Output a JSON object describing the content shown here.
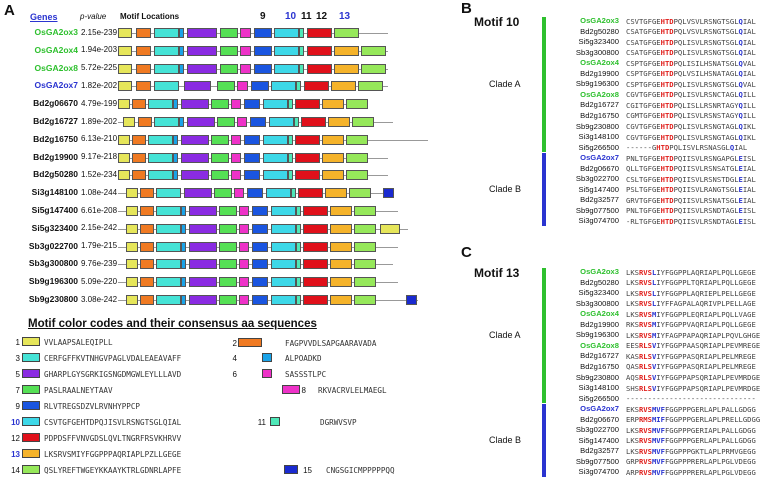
{
  "panels": {
    "a": "A",
    "b": "B",
    "c": "C"
  },
  "header": {
    "genes": "Genes",
    "pvalue": "p-value",
    "locations": "Motif Locations",
    "numbers": [
      {
        "t": "9",
        "c": "#111"
      },
      {
        "t": "10",
        "c": "#2a34d0"
      },
      {
        "t": "11",
        "c": "#111"
      },
      {
        "t": "12",
        "c": "#111"
      },
      {
        "t": "13",
        "c": "#2a34d0"
      }
    ]
  },
  "colors": {
    "1": "#e6e65a",
    "2": "#f07a22",
    "3": "#45e3d6",
    "4": "#1aa3e8",
    "5": "#8a2be2",
    "6": "#ee32c8",
    "7": "#55e055",
    "8": "#ee32c8",
    "9": "#1a55e0",
    "10": "#3dd8e8",
    "11": "#4ee8b8",
    "12": "#e0101a",
    "13": "#f5b32a",
    "14": "#96e85a",
    "15": "#1a2ad0",
    "green": "#2ec02e",
    "blue": "#2a34d0"
  },
  "genes": [
    {
      "name": "OsGA2ox3",
      "p": "2.15e-239",
      "color": "#2ec02e"
    },
    {
      "name": "OsGA2ox4",
      "p": "1.94e-203",
      "color": "#2ec02e"
    },
    {
      "name": "OsGA2ox8",
      "p": "5.72e-225",
      "color": "#2ec02e"
    },
    {
      "name": "OsGA2ox7",
      "p": "1.82e-202",
      "color": "#2a34d0"
    },
    {
      "name": "Bd2g06670",
      "p": "4.79e-199",
      "color": "#111"
    },
    {
      "name": "Bd2g16727",
      "p": "1.89e-202",
      "color": "#111"
    },
    {
      "name": "Bd2g16750",
      "p": "6.13e-210",
      "color": "#111"
    },
    {
      "name": "Bd2g19900",
      "p": "9.17e-218",
      "color": "#111"
    },
    {
      "name": "Bd2g50280",
      "p": "1.52e-234",
      "color": "#111"
    },
    {
      "name": "Si3g148100",
      "p": "1.08e-244",
      "color": "#111"
    },
    {
      "name": "Si5g147400",
      "p": "6.61e-208",
      "color": "#111"
    },
    {
      "name": "Si5g323400",
      "p": "2.15e-242",
      "color": "#111"
    },
    {
      "name": "Sb3g022700",
      "p": "1.79e-215",
      "color": "#111"
    },
    {
      "name": "Sb3g300800",
      "p": "9.76e-239",
      "color": "#111"
    },
    {
      "name": "Sb9g196300",
      "p": "5.09e-220",
      "color": "#111"
    },
    {
      "name": "Sb9g230800",
      "p": "3.08e-242",
      "color": "#111"
    }
  ],
  "legend": {
    "title": "Motif color codes and their consensus aa sequences",
    "items": [
      {
        "n": "1",
        "seq": "VVLAAPSALEQIPLL",
        "nc": "#111"
      },
      {
        "n": "2",
        "seq": "FAGPVVDLSAPGAARAVADA",
        "nc": "#111"
      },
      {
        "n": "3",
        "seq": "CERFGFFKVTNHGVPAGLVDALEAEAVAFF",
        "nc": "#111"
      },
      {
        "n": "4",
        "seq": "ALPOADKD",
        "nc": "#111"
      },
      {
        "n": "5",
        "seq": "GHARPLGYSGRKIGSNGDMGWLEYLLLAVD",
        "nc": "#111"
      },
      {
        "n": "6",
        "seq": "SASSSTLPC",
        "nc": "#111"
      },
      {
        "n": "7",
        "seq": "PASLRAALNEYTAAV",
        "nc": "#111"
      },
      {
        "n": "8",
        "seq": "RKVACRVLELMAEGL",
        "nc": "#111"
      },
      {
        "n": "9",
        "seq": "RLVTREGSDZVLRVNHYPPCP",
        "nc": "#111"
      },
      {
        "n": "10",
        "seq": "CSVTGFGEHTDPQJISVLRSNGTSGLQIAL",
        "nc": "#2a34d0"
      },
      {
        "n": "11",
        "seq": "DGRWVSVP",
        "nc": "#111"
      },
      {
        "n": "12",
        "seq": "PDPDSFFVNVGDSLQVLTNGRFRSVKHRVV",
        "nc": "#111"
      },
      {
        "n": "13",
        "seq": "LKSRVSMIYFGGPPPAQRIAPLPZLLGEGE",
        "nc": "#2a34d0"
      },
      {
        "n": "14",
        "seq": "QSLYREFTWGEYKKAAYKTRLGDNRLAPFE",
        "nc": "#111"
      },
      {
        "n": "15",
        "seq": "CNGSGICMPPPPPQQ",
        "nc": "#111"
      }
    ]
  },
  "motif10": {
    "title": "Motif 10",
    "cladeA": "Clade A",
    "cladeB": "Clade B",
    "rows": [
      {
        "name": "OsGA2ox3",
        "c": "#2ec02e",
        "s": [
          [
            "CSVTGFGE",
            ""
          ],
          [
            "HTD",
            "r"
          ],
          [
            "PQLVSVLRSNGTSGL",
            ""
          ],
          [
            "Q",
            "b"
          ],
          [
            "IAL",
            ""
          ]
        ]
      },
      {
        "name": "Bd2g50280",
        "c": "#111",
        "s": [
          [
            "CSATGFGE",
            ""
          ],
          [
            "HTD",
            "r"
          ],
          [
            "PQLVSVLRSNGTSGL",
            ""
          ],
          [
            "Q",
            "b"
          ],
          [
            "IAL",
            ""
          ]
        ]
      },
      {
        "name": "Si5g323400",
        "c": "#111",
        "s": [
          [
            "CSATGFGE",
            ""
          ],
          [
            "HTD",
            "r"
          ],
          [
            "PQLISVLRSNGTSGL",
            ""
          ],
          [
            "Q",
            "b"
          ],
          [
            "IAL",
            ""
          ]
        ]
      },
      {
        "name": "Sb3g300800",
        "c": "#111",
        "s": [
          [
            "CSATGFGE",
            ""
          ],
          [
            "HTD",
            "r"
          ],
          [
            "PQLISVLRSNGTSGL",
            ""
          ],
          [
            "Q",
            "b"
          ],
          [
            "IAL",
            ""
          ]
        ]
      },
      {
        "name": "OsGA2ox4",
        "c": "#2ec02e",
        "s": [
          [
            "CSPTGFGE",
            ""
          ],
          [
            "HTD",
            "r"
          ],
          [
            "PQLISILHSNATSGL",
            ""
          ],
          [
            "Q",
            "b"
          ],
          [
            "VAL",
            ""
          ]
        ]
      },
      {
        "name": "Bd2g19900",
        "c": "#111",
        "s": [
          [
            "CSPTGFGE",
            ""
          ],
          [
            "HTD",
            "r"
          ],
          [
            "PQLVSILHSNATAGL",
            ""
          ],
          [
            "Q",
            "b"
          ],
          [
            "IAL",
            ""
          ]
        ]
      },
      {
        "name": "Sb9g196300",
        "c": "#111",
        "s": [
          [
            "CSPTGFGE",
            ""
          ],
          [
            "HTD",
            "r"
          ],
          [
            "PQLISVLRSNGTSGL",
            ""
          ],
          [
            "Q",
            "b"
          ],
          [
            "VAL",
            ""
          ]
        ]
      },
      {
        "name": "OsGA2ox8",
        "c": "#2ec02e",
        "s": [
          [
            "CGVTGFGE",
            ""
          ],
          [
            "HTD",
            "r"
          ],
          [
            "PQLISVLRSNCTAGL",
            ""
          ],
          [
            "Q",
            "b"
          ],
          [
            "ILL",
            ""
          ]
        ]
      },
      {
        "name": "Bd2g16727",
        "c": "#111",
        "s": [
          [
            "CGITGFGE",
            ""
          ],
          [
            "HTD",
            "r"
          ],
          [
            "PQLISLLRSNRTAGY",
            ""
          ],
          [
            "Q",
            "b"
          ],
          [
            "ILL",
            ""
          ]
        ]
      },
      {
        "name": "Bd2g16750",
        "c": "#111",
        "s": [
          [
            "CGMTGFGE",
            ""
          ],
          [
            "HTD",
            "r"
          ],
          [
            "PQLISVLRSNSTAGY",
            ""
          ],
          [
            "Q",
            "b"
          ],
          [
            "ILL",
            ""
          ]
        ]
      },
      {
        "name": "Sb9g230800",
        "c": "#111",
        "s": [
          [
            "CGVTGFGE",
            ""
          ],
          [
            "HTD",
            "r"
          ],
          [
            "PQLISVLRSNGTAGL",
            ""
          ],
          [
            "Q",
            "b"
          ],
          [
            "IKL",
            ""
          ]
        ]
      },
      {
        "name": "Si3g148100",
        "c": "#111",
        "s": [
          [
            "CGVTGFGE",
            ""
          ],
          [
            "HTD",
            "r"
          ],
          [
            "PQLISVLRSNGTAGL",
            ""
          ],
          [
            "Q",
            "b"
          ],
          [
            "IKL",
            ""
          ]
        ]
      },
      {
        "name": "Si5g266500",
        "c": "#111",
        "s": [
          [
            "------G",
            ""
          ],
          [
            "HTD",
            "r"
          ],
          [
            "PQLISVLRSNASGL",
            ""
          ],
          [
            "Q",
            "b"
          ],
          [
            "IAL",
            ""
          ]
        ]
      },
      {
        "name": "OsGA2ox7",
        "c": "#2a34d0",
        "s": [
          [
            "PNLTGFGE",
            ""
          ],
          [
            "HTD",
            "r"
          ],
          [
            "PQIISVLRSNGAPGL",
            ""
          ],
          [
            "E",
            "b"
          ],
          [
            "ISL",
            ""
          ]
        ]
      },
      {
        "name": "Bd2g06670",
        "c": "#111",
        "s": [
          [
            "QLLTGFGE",
            ""
          ],
          [
            "HTD",
            "r"
          ],
          [
            "PQIISVLRSNSATGL",
            ""
          ],
          [
            "E",
            "b"
          ],
          [
            "IAL",
            ""
          ]
        ]
      },
      {
        "name": "Sb3g022700",
        "c": "#111",
        "s": [
          [
            "CSLTGFGE",
            ""
          ],
          [
            "HTD",
            "r"
          ],
          [
            "PQIISVLRSNSTDGL",
            ""
          ],
          [
            "E",
            "b"
          ],
          [
            "IAL",
            ""
          ]
        ]
      },
      {
        "name": "Si5g147400",
        "c": "#111",
        "s": [
          [
            "PSLTGFGE",
            ""
          ],
          [
            "HTD",
            "r"
          ],
          [
            "PQIISVLRANGTSGL",
            ""
          ],
          [
            "E",
            "b"
          ],
          [
            "IAL",
            ""
          ]
        ]
      },
      {
        "name": "Bd2g32577",
        "c": "#111",
        "s": [
          [
            "GRVTGFGE",
            ""
          ],
          [
            "HTD",
            "r"
          ],
          [
            "PQIISVLRSNATSGL",
            ""
          ],
          [
            "E",
            "b"
          ],
          [
            "IAL",
            ""
          ]
        ]
      },
      {
        "name": "Sb9g077500",
        "c": "#111",
        "s": [
          [
            "PNLTGFGE",
            ""
          ],
          [
            "HTD",
            "r"
          ],
          [
            "PQIISVLRSNDTAGL",
            ""
          ],
          [
            "E",
            "b"
          ],
          [
            "ISL",
            ""
          ]
        ]
      },
      {
        "name": "Si3g074700",
        "c": "#111",
        "s": [
          [
            "-RLTGFGE",
            ""
          ],
          [
            "HTD",
            "r"
          ],
          [
            "PQIISVLRSNDTAGL",
            ""
          ],
          [
            "E",
            "b"
          ],
          [
            "ISL",
            ""
          ]
        ]
      }
    ]
  },
  "motif13": {
    "title": "Motif 13",
    "cladeA": "Clade A",
    "cladeB": "Clade B",
    "rows": [
      {
        "name": "OsGA2ox3",
        "c": "#2ec02e",
        "s": [
          [
            "LKS",
            ""
          ],
          [
            "RVS",
            "r"
          ],
          [
            "L",
            "b"
          ],
          [
            "IYF",
            ""
          ],
          [
            "GGPPLAQRIAPLPQLLGEGE",
            ""
          ]
        ]
      },
      {
        "name": "Bd2g50280",
        "c": "#111",
        "s": [
          [
            "LKS",
            ""
          ],
          [
            "RVS",
            "r"
          ],
          [
            "L",
            "b"
          ],
          [
            "IYF",
            ""
          ],
          [
            "GGPPLTQRIAPLPQLLGEGE",
            ""
          ]
        ]
      },
      {
        "name": "Si5g323400",
        "c": "#111",
        "s": [
          [
            "LKS",
            ""
          ],
          [
            "RVS",
            "r"
          ],
          [
            "L",
            "b"
          ],
          [
            "IYF",
            ""
          ],
          [
            "GGPPLAQRIEPLPELLGEGE",
            ""
          ]
        ]
      },
      {
        "name": "Sb3g300800",
        "c": "#111",
        "s": [
          [
            "LKS",
            ""
          ],
          [
            "RVS",
            "r"
          ],
          [
            "L",
            "b"
          ],
          [
            "IYF",
            ""
          ],
          [
            "FAGPALAQRIVPLPELLAGE",
            ""
          ]
        ]
      },
      {
        "name": "OsGA2ox4",
        "c": "#2ec02e",
        "s": [
          [
            "LKS",
            ""
          ],
          [
            "RVS",
            "r"
          ],
          [
            "M",
            "b"
          ],
          [
            "IYF",
            ""
          ],
          [
            "GGPPLEQRIAPLPQLLVAGE",
            ""
          ]
        ]
      },
      {
        "name": "Bd2g19900",
        "c": "#111",
        "s": [
          [
            "RKS",
            ""
          ],
          [
            "RVS",
            "r"
          ],
          [
            "M",
            "b"
          ],
          [
            "IYF",
            ""
          ],
          [
            "GGPPVAQRIAPLPQLLGEGE",
            ""
          ]
        ]
      },
      {
        "name": "Sb9g196300",
        "c": "#111",
        "s": [
          [
            "LKS",
            ""
          ],
          [
            "RVS",
            "r"
          ],
          [
            "M",
            "b"
          ],
          [
            "IYF",
            ""
          ],
          [
            "AGPPAPAQRIAPLPQVLGHGE",
            ""
          ]
        ]
      },
      {
        "name": "OsGA2ox8",
        "c": "#2ec02e",
        "s": [
          [
            "EES",
            ""
          ],
          [
            "RLS",
            "r"
          ],
          [
            "V",
            "b"
          ],
          [
            "IYF",
            ""
          ],
          [
            "GGPPAASQRIAPLPEVMREGE",
            ""
          ]
        ]
      },
      {
        "name": "Bd2g16727",
        "c": "#111",
        "s": [
          [
            "KAS",
            ""
          ],
          [
            "RLS",
            "r"
          ],
          [
            "V",
            "b"
          ],
          [
            "IYF",
            ""
          ],
          [
            "GGPPASQRIAPLPELMREGE",
            ""
          ]
        ]
      },
      {
        "name": "Bd2g16750",
        "c": "#111",
        "s": [
          [
            "QAS",
            ""
          ],
          [
            "RLS",
            "r"
          ],
          [
            "V",
            "b"
          ],
          [
            "IYF",
            ""
          ],
          [
            "GGPPASQRIAPLPELMREGE",
            ""
          ]
        ]
      },
      {
        "name": "Sb9g230800",
        "c": "#111",
        "s": [
          [
            "AQS",
            ""
          ],
          [
            "RLS",
            "r"
          ],
          [
            "V",
            "b"
          ],
          [
            "IYF",
            ""
          ],
          [
            "GGPPAPSQRIAPLPEVMRDGE",
            ""
          ]
        ]
      },
      {
        "name": "Si3g148100",
        "c": "#111",
        "s": [
          [
            "SHS",
            ""
          ],
          [
            "RLS",
            "r"
          ],
          [
            "V",
            "b"
          ],
          [
            "IYF",
            ""
          ],
          [
            "GGPPAPSQRIAPLPEVMRDGE",
            ""
          ]
        ]
      },
      {
        "name": "Si5g266500",
        "c": "#111",
        "s": [
          [
            "------------------------------",
            ""
          ]
        ]
      },
      {
        "name": "OsGA2ox7",
        "c": "#2a34d0",
        "s": [
          [
            "EKS",
            ""
          ],
          [
            "RVS",
            "r"
          ],
          [
            "M",
            "b"
          ],
          [
            "VF",
            "b"
          ],
          [
            "FGGPPPGERLAPLPALLGDGG",
            ""
          ]
        ]
      },
      {
        "name": "Bd2g06670",
        "c": "#111",
        "s": [
          [
            "ERP",
            ""
          ],
          [
            "RMS",
            "r"
          ],
          [
            "M",
            "b"
          ],
          [
            "IF",
            "b"
          ],
          [
            "FGGPPPGERLAPLPRELLGDGG",
            ""
          ]
        ]
      },
      {
        "name": "Sb3g022700",
        "c": "#111",
        "s": [
          [
            "LKS",
            ""
          ],
          [
            "RVS",
            "r"
          ],
          [
            "M",
            "b"
          ],
          [
            "VF",
            "b"
          ],
          [
            "FGGPPPGERIAPLPALLGDGG",
            ""
          ]
        ]
      },
      {
        "name": "Si5g147400",
        "c": "#111",
        "s": [
          [
            "LKS",
            ""
          ],
          [
            "RVS",
            "r"
          ],
          [
            "M",
            "b"
          ],
          [
            "VF",
            "b"
          ],
          [
            "FGGPPPGERLAPLPALLGDGG",
            ""
          ]
        ]
      },
      {
        "name": "Bd2g32577",
        "c": "#111",
        "s": [
          [
            "LKS",
            ""
          ],
          [
            "RVS",
            "r"
          ],
          [
            "M",
            "b"
          ],
          [
            "VF",
            "b"
          ],
          [
            "FGGPPPGKTLAPLPRMVGEGG",
            ""
          ]
        ]
      },
      {
        "name": "Sb9g077500",
        "c": "#111",
        "s": [
          [
            "GRP",
            ""
          ],
          [
            "RVS",
            "r"
          ],
          [
            "M",
            "b"
          ],
          [
            "VF",
            "b"
          ],
          [
            "FGGPPPRERLAPLPGLVDEGG",
            ""
          ]
        ]
      },
      {
        "name": "Si3g074700",
        "c": "#111",
        "s": [
          [
            "ARP",
            ""
          ],
          [
            "RVS",
            "r"
          ],
          [
            "M",
            "b"
          ],
          [
            "VF",
            "b"
          ],
          [
            "FGGPPPRERLAPLPGLVDEGG",
            ""
          ]
        ]
      }
    ]
  }
}
